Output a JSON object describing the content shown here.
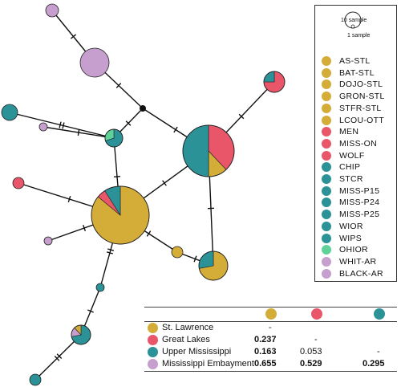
{
  "colors": {
    "st_lawrence": "#d4ad38",
    "great_lakes": "#e9566a",
    "upper_mississippi": "#2b9298",
    "ohio": "#5fd29a",
    "embayment": "#c79fce",
    "edge": "#111111",
    "outline": "#222222"
  },
  "legend": {
    "scale": {
      "large_label": "10 sample",
      "small_label": "1 sample"
    },
    "items": [
      {
        "label": "AS-STL",
        "color": "#d4ad38"
      },
      {
        "label": "BAT-STL",
        "color": "#d4ad38"
      },
      {
        "label": "DOJO-STL",
        "color": "#d4ad38"
      },
      {
        "label": "GRON-STL",
        "color": "#d4ad38"
      },
      {
        "label": "STFR-STL",
        "color": "#d4ad38"
      },
      {
        "label": "LCOU-OTT",
        "color": "#d4ad38"
      },
      {
        "label": "MEN",
        "color": "#e9566a"
      },
      {
        "label": "MISS-ON",
        "color": "#e9566a"
      },
      {
        "label": "WOLF",
        "color": "#e9566a"
      },
      {
        "label": "CHIP",
        "color": "#2b9298"
      },
      {
        "label": "STCR",
        "color": "#2b9298"
      },
      {
        "label": "MISS-P15",
        "color": "#2b9298"
      },
      {
        "label": "MISS-P24",
        "color": "#2b9298"
      },
      {
        "label": "MISS-P25",
        "color": "#2b9298"
      },
      {
        "label": "WIOR",
        "color": "#2b9298"
      },
      {
        "label": "WIPS",
        "color": "#2b9298"
      },
      {
        "label": "OHIOR",
        "color": "#5fd29a"
      },
      {
        "label": "WHIT-AR",
        "color": "#c79fce"
      },
      {
        "label": "BLACK-AR",
        "color": "#c79fce"
      }
    ]
  },
  "table": {
    "header_colors": [
      "#d4ad38",
      "#e9566a",
      "#2b9298"
    ],
    "rows": [
      {
        "name": "St. Lawrence",
        "color": "#d4ad38",
        "cells": [
          "-"
        ]
      },
      {
        "name": "Great Lakes",
        "color": "#e9566a",
        "cells": [
          "0.237",
          "-"
        ]
      },
      {
        "name": "Upper Mississippi",
        "color": "#2b9298",
        "cells": [
          "0.163",
          "0.053",
          "-"
        ]
      },
      {
        "name": "Mississippi Embayment",
        "color": "#c79fce",
        "cells": [
          "0.655",
          "0.529",
          "0.295"
        ]
      }
    ]
  }
}
